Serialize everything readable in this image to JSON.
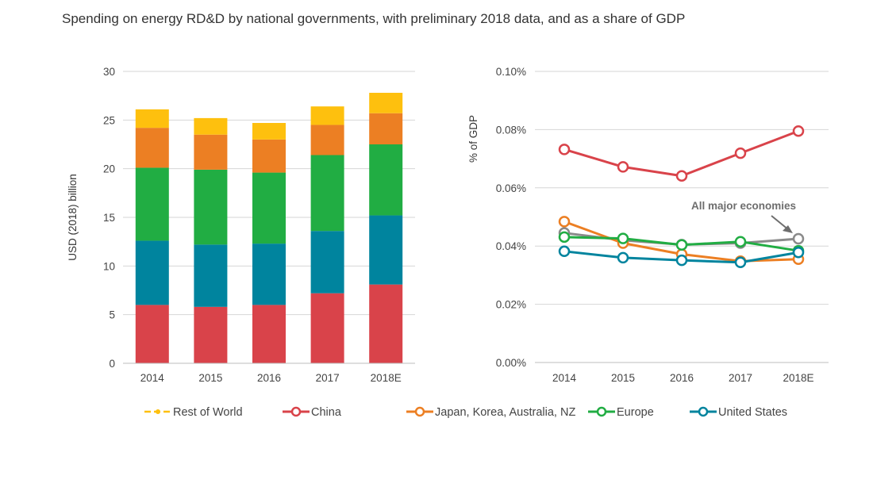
{
  "title": "Spending on energy RD&D by national governments, with preliminary 2018 data, and as a share of GDP",
  "chart_data": [
    {
      "type": "bar",
      "stacked": true,
      "categories": [
        "2014",
        "2015",
        "2016",
        "2017",
        "2018E"
      ],
      "ylabel": "USD (2018) billion",
      "xlabel": "",
      "ylim": [
        0,
        30
      ],
      "yticks": [
        "0",
        "5",
        "10",
        "15",
        "20",
        "25",
        "30"
      ],
      "grid": "horizontal",
      "series": [
        {
          "name": "China",
          "color": "#d9434a",
          "values": [
            6.0,
            5.8,
            6.0,
            7.2,
            8.1
          ]
        },
        {
          "name": "United States",
          "color": "#00849e",
          "values": [
            6.6,
            6.4,
            6.3,
            6.4,
            7.1
          ]
        },
        {
          "name": "Europe",
          "color": "#21ad43",
          "values": [
            7.5,
            7.7,
            7.3,
            7.8,
            7.3
          ]
        },
        {
          "name": "Japan, Korea, Australia, NZ",
          "color": "#ec7f23",
          "values": [
            4.1,
            3.6,
            3.4,
            3.1,
            3.2
          ]
        },
        {
          "name": "Rest of World",
          "color": "#fec00e",
          "values": [
            1.9,
            1.7,
            1.7,
            1.9,
            2.1
          ]
        }
      ]
    },
    {
      "type": "line",
      "x": [
        "2014",
        "2015",
        "2016",
        "2017",
        "2018E"
      ],
      "ylabel": "% of GDP",
      "xlabel": "",
      "ylim": [
        0,
        0.1
      ],
      "yticks": [
        "0.00%",
        "0.02%",
        "0.04%",
        "0.06%",
        "0.08%",
        "0.10%"
      ],
      "grid": "horizontal",
      "series": [
        {
          "name": "All major economies",
          "color": "#8a8a8a",
          "values": [
            0.0445,
            0.042,
            0.0405,
            0.041,
            0.0425
          ]
        },
        {
          "name": "China",
          "color": "#d9434a",
          "values": [
            0.0732,
            0.0672,
            0.0641,
            0.0719,
            0.0795
          ]
        },
        {
          "name": "Japan, Korea, Australia, NZ",
          "color": "#ec7f23",
          "values": [
            0.0484,
            0.041,
            0.0372,
            0.0348,
            0.0355
          ]
        },
        {
          "name": "Europe",
          "color": "#21ad43",
          "values": [
            0.0431,
            0.0426,
            0.0404,
            0.0415,
            0.0384
          ]
        },
        {
          "name": "United States",
          "color": "#00849e",
          "values": [
            0.0382,
            0.036,
            0.0351,
            0.0344,
            0.0378
          ]
        }
      ],
      "annotation": "All major economies"
    }
  ],
  "legend": [
    {
      "label": "Rest of World",
      "color": "#fec00e",
      "marker": "dot"
    },
    {
      "label": "China",
      "color": "#d9434a",
      "marker": "circle"
    },
    {
      "label": "Japan, Korea, Australia, NZ",
      "color": "#ec7f23",
      "marker": "circle"
    },
    {
      "label": "Europe",
      "color": "#21ad43",
      "marker": "circle"
    },
    {
      "label": "United States",
      "color": "#00849e",
      "marker": "circle"
    }
  ]
}
